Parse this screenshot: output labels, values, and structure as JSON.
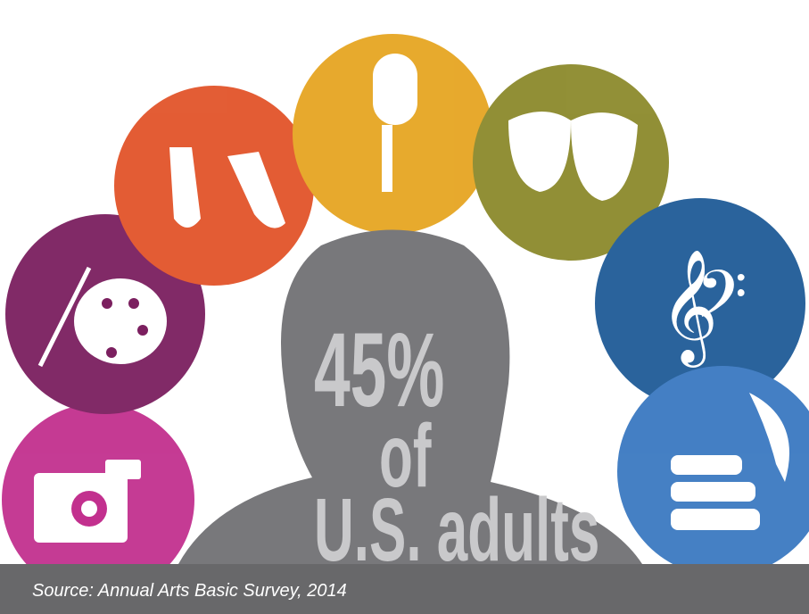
{
  "headline": {
    "figure": "45%",
    "connector": "of",
    "subject": "U.S. adults"
  },
  "footer": {
    "source": "Source: Annual Arts Basic Survey, 2014"
  }
}
